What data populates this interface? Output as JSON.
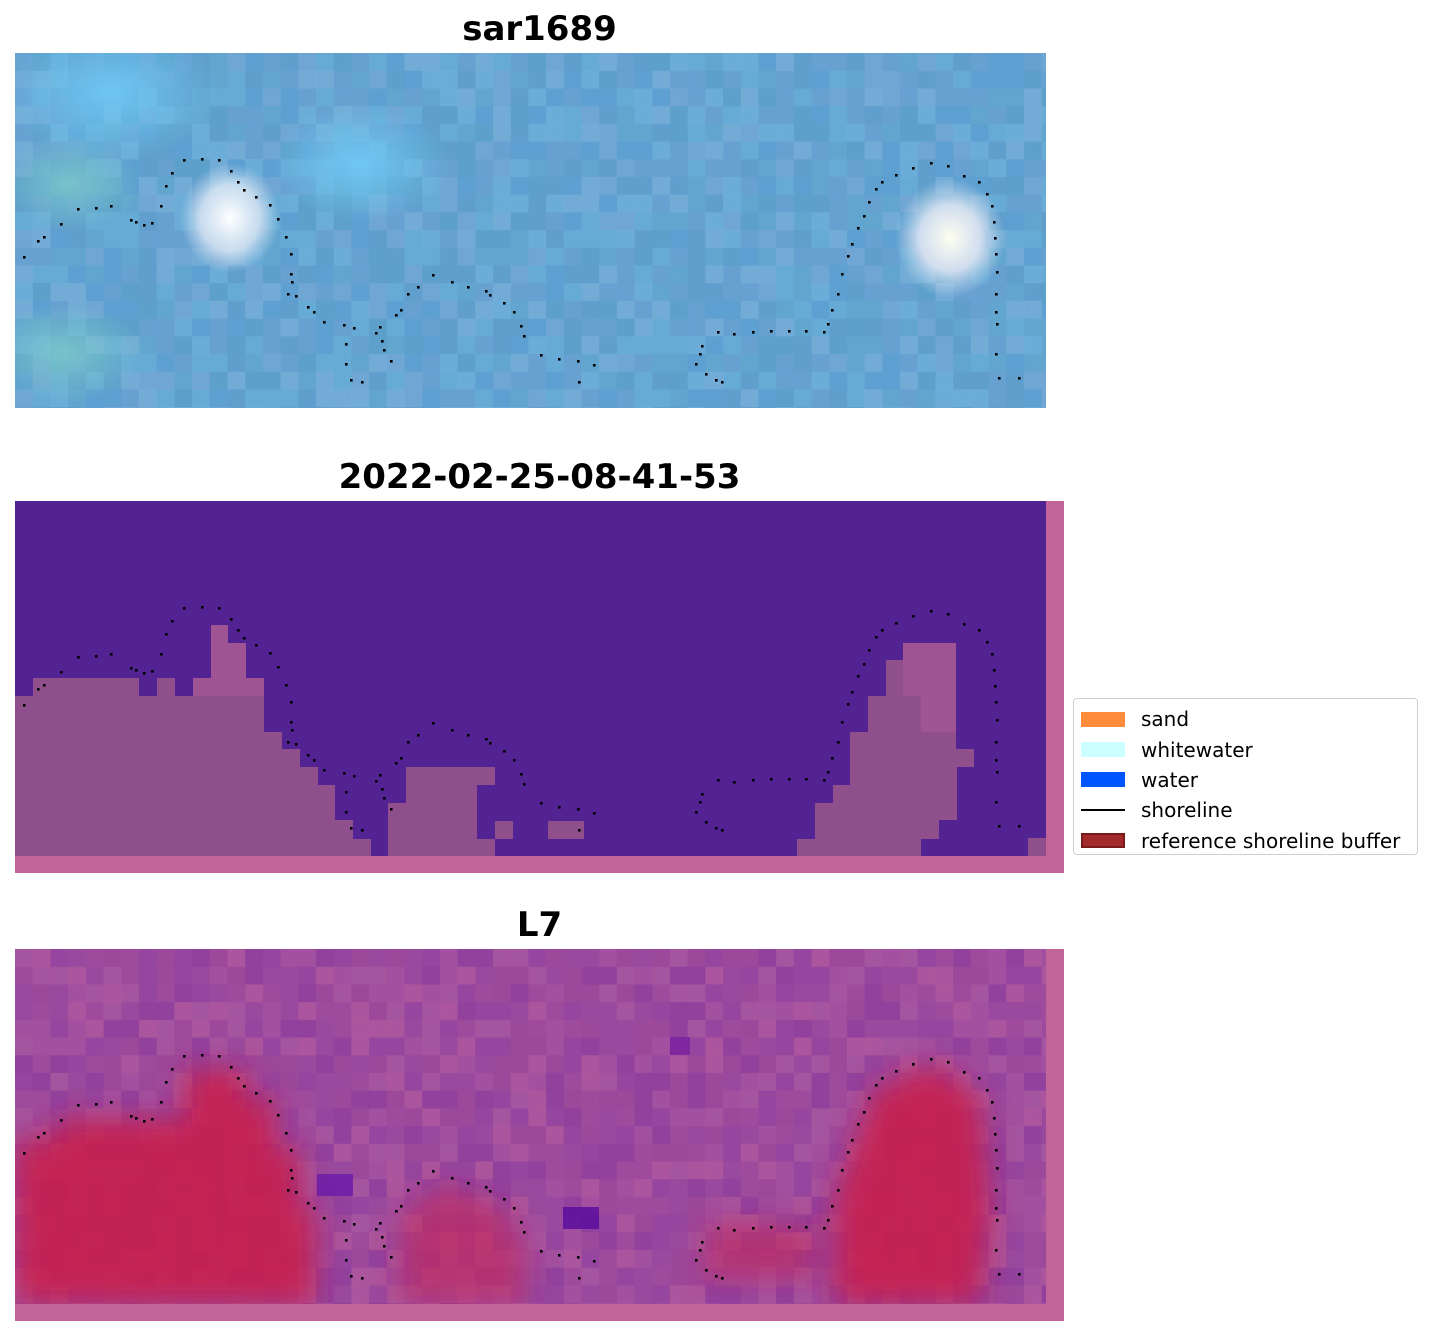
{
  "panels": [
    {
      "title": "sar1689"
    },
    {
      "title": "2022-02-25-08-41-53"
    },
    {
      "title": "L7"
    }
  ],
  "legend": {
    "items": [
      {
        "label": "sand",
        "kind": "patch",
        "color": "#ff8c3a"
      },
      {
        "label": "whitewater",
        "kind": "patch",
        "color": "#ccffff"
      },
      {
        "label": "water",
        "kind": "patch",
        "color": "#0055ff"
      },
      {
        "label": "shoreline",
        "kind": "line",
        "color": "#000000"
      },
      {
        "label": "reference shoreline buffer",
        "kind": "patch",
        "color": "#a32a2a"
      }
    ]
  },
  "colors": {
    "sar_base": "#63a4d2",
    "class_water": "#532394",
    "class_land": "#8f4f8c",
    "class_frame": "#c0649a",
    "prob_low": "#9a4a9e",
    "prob_high": "#c81e4e"
  }
}
